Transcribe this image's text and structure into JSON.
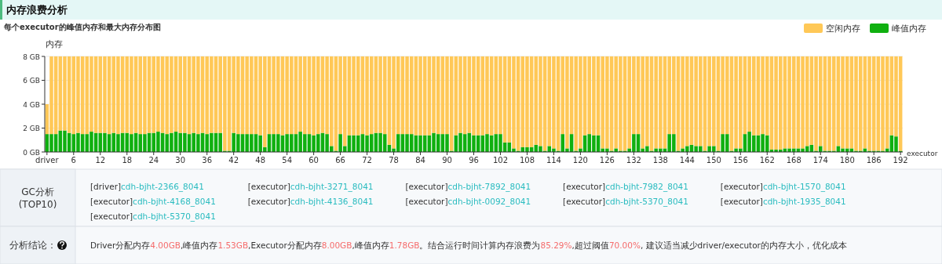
{
  "chart_data": [
    {
      "type": "bar",
      "title": "内存浪费分析",
      "subtitle": "每个executor的峰值内存和最大内存分布图",
      "ylabel": "内存",
      "xlabel": "executor",
      "stacked": true,
      "grid": "y",
      "legend": "top right",
      "ylim": [
        0,
        8
      ],
      "yticks": [
        {
          "value": 0,
          "label": "0 GB"
        },
        {
          "value": 2,
          "label": "2 GB"
        },
        {
          "value": 4,
          "label": "4 GB"
        },
        {
          "value": 6,
          "label": "6 GB"
        },
        {
          "value": 8,
          "label": "8 GB"
        }
      ],
      "categories": [
        "driver",
        null,
        null,
        null,
        null,
        null,
        "6",
        null,
        null,
        null,
        null,
        null,
        "12",
        null,
        null,
        null,
        null,
        null,
        "18",
        null,
        null,
        null,
        null,
        null,
        "24",
        null,
        null,
        null,
        null,
        null,
        "30",
        null,
        null,
        null,
        null,
        null,
        "36",
        null,
        null,
        null,
        null,
        null,
        "42",
        null,
        null,
        null,
        null,
        null,
        "48",
        null,
        null,
        null,
        null,
        null,
        "54",
        null,
        null,
        null,
        null,
        null,
        "60",
        null,
        null,
        null,
        null,
        null,
        "66",
        null,
        null,
        null,
        null,
        null,
        "72",
        null,
        null,
        null,
        null,
        null,
        "78",
        null,
        null,
        null,
        null,
        null,
        "84",
        null,
        null,
        null,
        null,
        null,
        "90",
        null,
        null,
        null,
        null,
        null,
        "96",
        null,
        null,
        null,
        null,
        null,
        "102",
        null,
        null,
        null,
        null,
        null,
        "108",
        null,
        null,
        null,
        null,
        null,
        "114",
        null,
        null,
        null,
        null,
        null,
        "120",
        null,
        null,
        null,
        null,
        null,
        "126",
        null,
        null,
        null,
        null,
        null,
        "132",
        null,
        null,
        null,
        null,
        null,
        "138",
        null,
        null,
        null,
        null,
        null,
        "144",
        null,
        null,
        null,
        null,
        null,
        "150",
        null,
        null,
        null,
        null,
        null,
        "156",
        null,
        null,
        null,
        null,
        null,
        "162",
        null,
        null,
        null,
        null,
        null,
        "168",
        null,
        null,
        null,
        null,
        null,
        "174",
        null,
        null,
        null,
        null,
        null,
        "180",
        null,
        null,
        null,
        null,
        null,
        "186",
        null,
        null,
        null,
        null,
        null,
        "192"
      ],
      "series": [
        {
          "name": "峰值内存",
          "color": "#10b010",
          "values": [
            1.5,
            1.5,
            1.5,
            1.8,
            1.8,
            1.6,
            1.5,
            1.6,
            1.5,
            1.5,
            1.7,
            1.6,
            1.6,
            1.6,
            1.5,
            1.6,
            1.5,
            1.6,
            1.6,
            1.5,
            1.6,
            1.5,
            1.5,
            1.6,
            1.6,
            1.7,
            1.6,
            1.5,
            1.6,
            1.7,
            1.6,
            1.6,
            1.5,
            1.6,
            1.5,
            1.6,
            1.5,
            1.6,
            1.6,
            1.6,
            0.1,
            0.1,
            1.6,
            1.5,
            1.5,
            1.5,
            1.5,
            1.5,
            1.4,
            0.4,
            1.5,
            1.5,
            1.5,
            1.4,
            1.5,
            1.5,
            1.5,
            1.7,
            1.5,
            1.5,
            1.4,
            1.5,
            1.6,
            1.5,
            0.5,
            0.1,
            1.5,
            0.5,
            1.4,
            1.4,
            1.4,
            1.5,
            1.4,
            1.5,
            1.6,
            1.6,
            1.5,
            0.6,
            0.3,
            1.5,
            1.5,
            1.5,
            1.5,
            1.4,
            1.4,
            1.4,
            1.4,
            1.6,
            1.5,
            1.5,
            1.5,
            0.1,
            1.4,
            1.6,
            1.5,
            1.6,
            1.4,
            1.4,
            1.4,
            1.5,
            1.4,
            1.5,
            1.5,
            0.8,
            0.8,
            0.3,
            0.1,
            0.4,
            0.4,
            0.4,
            0.6,
            0.5,
            0.1,
            0.5,
            0.3,
            0.1,
            1.5,
            0.3,
            1.5,
            0.1,
            0.3,
            1.4,
            1.5,
            1.4,
            1.4,
            0.3,
            0.3,
            0.1,
            0.3,
            0.1,
            0.1,
            0.3,
            1.5,
            1.5,
            0.3,
            0.5,
            0.1,
            0.3,
            0.3,
            0.3,
            1.5,
            1.5,
            0.1,
            0.3,
            0.5,
            0.6,
            0.5,
            0.5,
            0.1,
            0.5,
            0.5,
            0.1,
            1.5,
            1.5,
            0.1,
            0.3,
            0.3,
            1.5,
            1.7,
            1.4,
            1.4,
            1.5,
            1.4,
            0.2,
            0.2,
            0.2,
            0.3,
            0.3,
            0.3,
            0.3,
            0.3,
            0.5,
            0.6,
            0.1,
            0.5,
            0.1,
            0.1,
            0.1,
            0.5,
            0.3,
            0.3,
            0.3,
            0.1,
            0.1,
            0.3,
            0.1,
            0.1,
            0.1,
            0.1,
            0.3,
            1.4,
            1.3,
            0.1
          ]
        },
        {
          "name": "空闲内存",
          "color": "#ffc857",
          "values": [
            2.5,
            6.5,
            6.5,
            6.2,
            6.2,
            6.4,
            6.5,
            6.4,
            6.5,
            6.5,
            6.3,
            6.4,
            6.4,
            6.4,
            6.5,
            6.4,
            6.5,
            6.4,
            6.4,
            6.5,
            6.4,
            6.5,
            6.5,
            6.4,
            6.4,
            6.3,
            6.4,
            6.5,
            6.4,
            6.3,
            6.4,
            6.4,
            6.5,
            6.4,
            6.5,
            6.4,
            6.5,
            6.4,
            6.4,
            6.4,
            7.9,
            7.9,
            6.4,
            6.5,
            6.5,
            6.5,
            6.5,
            6.5,
            6.6,
            7.6,
            6.5,
            6.5,
            6.5,
            6.6,
            6.5,
            6.5,
            6.5,
            6.3,
            6.5,
            6.5,
            6.6,
            6.5,
            6.4,
            6.5,
            7.5,
            7.9,
            6.5,
            7.5,
            6.6,
            6.6,
            6.6,
            6.5,
            6.6,
            6.5,
            6.4,
            6.4,
            6.5,
            7.4,
            7.7,
            6.5,
            6.5,
            6.5,
            6.5,
            6.6,
            6.6,
            6.6,
            6.6,
            6.4,
            6.5,
            6.5,
            6.5,
            7.9,
            6.6,
            6.4,
            6.5,
            6.4,
            6.6,
            6.6,
            6.6,
            6.5,
            6.6,
            6.5,
            6.5,
            7.2,
            7.2,
            7.7,
            7.9,
            7.6,
            7.6,
            7.6,
            7.4,
            7.5,
            7.9,
            7.5,
            7.7,
            7.9,
            6.5,
            7.7,
            6.5,
            7.9,
            7.7,
            6.6,
            6.5,
            6.6,
            6.6,
            7.7,
            7.7,
            7.9,
            7.7,
            7.9,
            7.9,
            7.7,
            6.5,
            6.5,
            7.7,
            7.5,
            7.9,
            7.7,
            7.7,
            7.7,
            6.5,
            6.5,
            7.9,
            7.7,
            7.5,
            7.4,
            7.5,
            7.5,
            7.9,
            7.5,
            7.5,
            7.9,
            6.5,
            6.5,
            7.9,
            7.7,
            7.7,
            6.5,
            6.3,
            6.6,
            6.6,
            6.5,
            6.6,
            7.8,
            7.8,
            7.8,
            7.7,
            7.7,
            7.7,
            7.7,
            7.7,
            7.5,
            7.4,
            7.9,
            7.5,
            7.9,
            7.9,
            7.9,
            7.5,
            7.7,
            7.7,
            7.7,
            7.9,
            7.9,
            7.7,
            7.9,
            7.9,
            7.9,
            7.9,
            7.7,
            6.6,
            6.7,
            7.9
          ]
        }
      ]
    },
    {
      "type": "other",
      "title": "GC分析 (TOP10)",
      "annotations": [
        "[driver]cdh-bjht-2366_8041",
        "[executor]cdh-bjht-3271_8041",
        "[executor]cdh-bjht-7892_8041",
        "[executor]cdh-bjht-7982_8041",
        "[executor]cdh-bjht-1570_8041",
        "[executor]cdh-bjht-4168_8041",
        "[executor]cdh-bjht-4136_8041",
        "[executor]cdh-bjht-0092_8041",
        "[executor]cdh-bjht-5370_8041",
        "[executor]cdh-bjht-1935_8041",
        "[executor]cdh-bjht-5370_8041"
      ]
    },
    {
      "type": "other",
      "title": "分析结论：",
      "annotations": [
        "Driver分配内存4.00GB,峰值内存1.53GB,Executor分配内存8.00GB,峰值内存1.78GB。结合运行时间计算内存浪费为85.29%,超过阈值70.00%, 建议适当减少driver/executor的内存大小，优化成本"
      ]
    }
  ]
}
